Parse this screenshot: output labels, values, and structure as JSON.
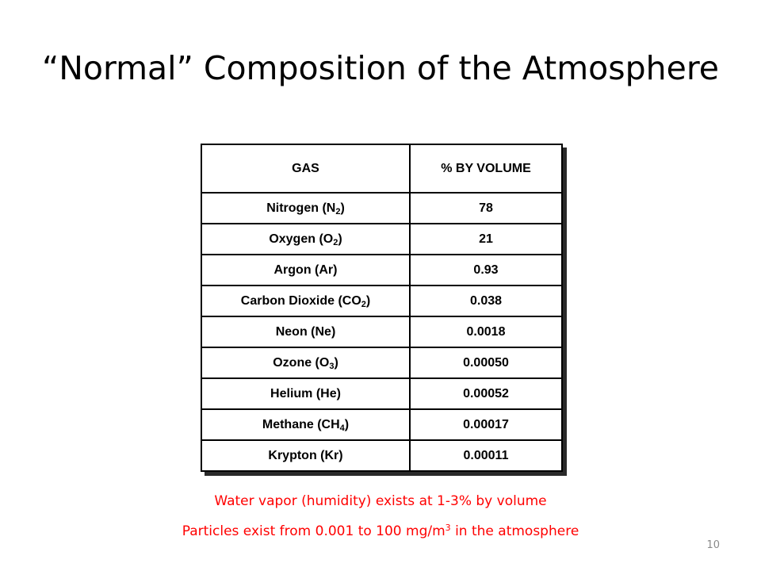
{
  "title": "“Normal” Composition of the Atmosphere",
  "table": {
    "headers": [
      "GAS",
      "% BY VOLUME"
    ],
    "rows": [
      {
        "gas": "Nitrogen (N",
        "sub": "2",
        "suffix": ")",
        "volume": "78"
      },
      {
        "gas": "Oxygen (O",
        "sub": "2",
        "suffix": ")",
        "volume": "21"
      },
      {
        "gas": "Argon (Ar)",
        "sub": "",
        "suffix": "",
        "volume": "0.93"
      },
      {
        "gas": "Carbon Dioxide (CO",
        "sub": "2",
        "suffix": ")",
        "volume": "0.038"
      },
      {
        "gas": "Neon (Ne)",
        "sub": "",
        "suffix": "",
        "volume": "0.0018"
      },
      {
        "gas": "Ozone (O",
        "sub": "3",
        "suffix": ")",
        "volume": "0.00050"
      },
      {
        "gas": "Helium (He)",
        "sub": "",
        "suffix": "",
        "volume": "0.00052"
      },
      {
        "gas": "Methane (CH",
        "sub": "4",
        "suffix": ")",
        "volume": "0.00017"
      },
      {
        "gas": "Krypton (Kr)",
        "sub": "",
        "suffix": "",
        "volume": "0.00011"
      }
    ]
  },
  "notes": {
    "water_vapor": "Water vapor (humidity) exists at 1-3% by volume",
    "particles_before": "Particles exist from 0.001 to 100 mg/m",
    "particles_sup": "3",
    "particles_after": " in the atmosphere"
  },
  "slide_number": "10",
  "colors": {
    "title": "#000000",
    "note_text": "#ff0000",
    "table_border": "#000000",
    "slide_number": "#8a8a8a"
  }
}
